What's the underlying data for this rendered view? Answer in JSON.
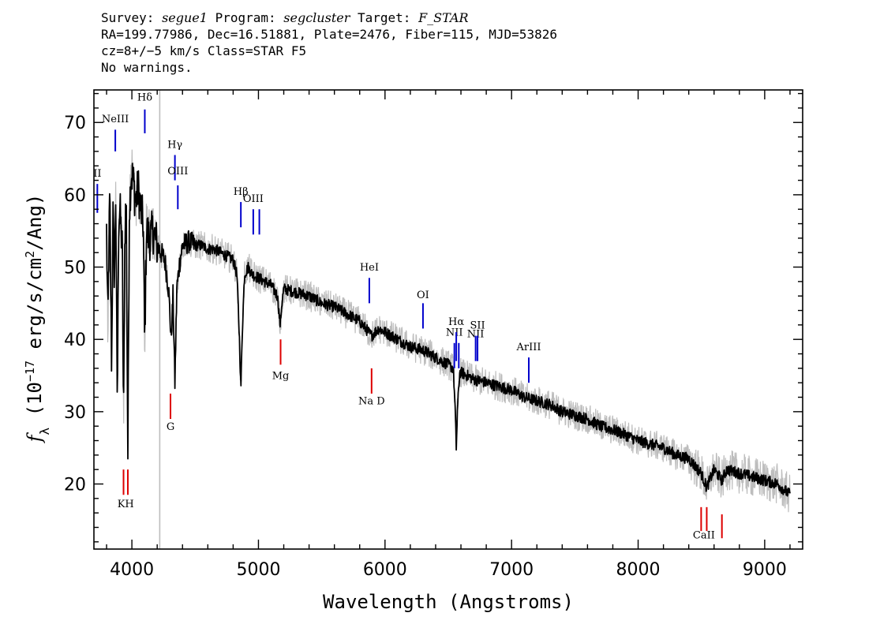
{
  "header": {
    "survey_label": "Survey:",
    "survey_value": "segue1",
    "program_label": "Program:",
    "program_value": "segcluster",
    "target_label": "Target:",
    "target_value": "F_STAR",
    "line2": "RA=199.77986, Dec=16.51881, Plate=2476, Fiber=115, MJD=53826",
    "line3": "cz=8+/−5 km/s Class=STAR F5",
    "line4": "No warnings."
  },
  "chart_data": {
    "type": "line",
    "xlabel": "Wavelength (Angstroms)",
    "ylabel": "f_λ (10^-17 erg/s/cm^2/Ang)",
    "xlim": [
      3700,
      9300
    ],
    "ylim": [
      11,
      74.5
    ],
    "x_ticks": [
      4000,
      5000,
      6000,
      7000,
      8000,
      9000
    ],
    "y_ticks": [
      20,
      30,
      40,
      50,
      60,
      70
    ],
    "grid": false,
    "legend": "none",
    "vertical_marker_x": 4220,
    "colors": {
      "spectrum": "#000000",
      "error_band": "#bdbdbd",
      "emission": "#0000cc",
      "absorption": "#dd0000",
      "marker": "#bdbdbd"
    },
    "spectrum": [
      [
        3800,
        55
      ],
      [
        3810,
        42
      ],
      [
        3825,
        60
      ],
      [
        3840,
        36
      ],
      [
        3850,
        58
      ],
      [
        3862,
        48
      ],
      [
        3872,
        60
      ],
      [
        3885,
        31
      ],
      [
        3895,
        56
      ],
      [
        3905,
        58
      ],
      [
        3925,
        52
      ],
      [
        3934,
        28
      ],
      [
        3945,
        55
      ],
      [
        3955,
        60
      ],
      [
        3968,
        24
      ],
      [
        3980,
        58
      ],
      [
        3995,
        63
      ],
      [
        4010,
        62
      ],
      [
        4030,
        59
      ],
      [
        4050,
        61
      ],
      [
        4070,
        58
      ],
      [
        4090,
        56
      ],
      [
        4101,
        39
      ],
      [
        4115,
        55
      ],
      [
        4140,
        54
      ],
      [
        4170,
        55
      ],
      [
        4200,
        53
      ],
      [
        4230,
        52
      ],
      [
        4260,
        51
      ],
      [
        4290,
        47
      ],
      [
        4310,
        40
      ],
      [
        4325,
        46
      ],
      [
        4340,
        34
      ],
      [
        4355,
        47
      ],
      [
        4380,
        51
      ],
      [
        4400,
        53
      ],
      [
        4450,
        53.5
      ],
      [
        4500,
        53
      ],
      [
        4550,
        53
      ],
      [
        4600,
        52.5
      ],
      [
        4650,
        52.5
      ],
      [
        4700,
        52
      ],
      [
        4750,
        51.5
      ],
      [
        4800,
        51
      ],
      [
        4830,
        49
      ],
      [
        4850,
        40
      ],
      [
        4861,
        33
      ],
      [
        4872,
        41
      ],
      [
        4890,
        49
      ],
      [
        4920,
        50
      ],
      [
        4950,
        49
      ],
      [
        5000,
        48.5
      ],
      [
        5050,
        48
      ],
      [
        5100,
        47.5
      ],
      [
        5150,
        46
      ],
      [
        5172,
        42
      ],
      [
        5185,
        45
      ],
      [
        5200,
        47
      ],
      [
        5300,
        46.5
      ],
      [
        5400,
        46
      ],
      [
        5500,
        45
      ],
      [
        5600,
        44.5
      ],
      [
        5700,
        43.5
      ],
      [
        5800,
        42.5
      ],
      [
        5893,
        40.5
      ],
      [
        5950,
        41.5
      ],
      [
        6000,
        41
      ],
      [
        6100,
        40
      ],
      [
        6200,
        39
      ],
      [
        6300,
        38.5
      ],
      [
        6400,
        37.5
      ],
      [
        6500,
        36.5
      ],
      [
        6540,
        36
      ],
      [
        6555,
        30
      ],
      [
        6563,
        25
      ],
      [
        6572,
        30
      ],
      [
        6590,
        35.5
      ],
      [
        6650,
        35
      ],
      [
        6700,
        34.5
      ],
      [
        6800,
        34
      ],
      [
        6900,
        33.5
      ],
      [
        7000,
        33
      ],
      [
        7100,
        32
      ],
      [
        7200,
        31.5
      ],
      [
        7300,
        31
      ],
      [
        7400,
        30
      ],
      [
        7500,
        29.5
      ],
      [
        7600,
        29
      ],
      [
        7700,
        28
      ],
      [
        7800,
        27.5
      ],
      [
        7900,
        26.8
      ],
      [
        8000,
        26
      ],
      [
        8100,
        25.5
      ],
      [
        8200,
        25
      ],
      [
        8300,
        24
      ],
      [
        8400,
        23.5
      ],
      [
        8498,
        21.5
      ],
      [
        8542,
        19.5
      ],
      [
        8600,
        22
      ],
      [
        8662,
        20.5
      ],
      [
        8700,
        22
      ],
      [
        8800,
        21.5
      ],
      [
        8900,
        21
      ],
      [
        9000,
        20.5
      ],
      [
        9100,
        20
      ],
      [
        9200,
        18.5
      ]
    ],
    "emission_lines": [
      {
        "label": "II",
        "x": 3727,
        "y_bottom": 57.5,
        "y_top": 61.5,
        "label_y": 62.5
      },
      {
        "label": "NeIII",
        "x": 3869,
        "y_bottom": 66,
        "y_top": 69,
        "label_y": 70
      },
      {
        "label": "Hδ",
        "x": 4102,
        "y_bottom": 68.5,
        "y_top": 71.8,
        "label_y": 73
      },
      {
        "label": "Hγ",
        "x": 4340,
        "y_bottom": 62,
        "y_top": 65.5,
        "label_y": 66.5
      },
      {
        "label": "OIII",
        "x": 4363,
        "y_bottom": 58,
        "y_top": 61.3,
        "label_y": 62.8
      },
      {
        "label": "Hβ",
        "x": 4861,
        "y_bottom": 55.5,
        "y_top": 59,
        "label_y": 60
      },
      {
        "label": "OIII",
        "x": 4959,
        "y_bottom": 54.5,
        "y_top": 58,
        "label_y": 59
      },
      {
        "label": "",
        "x": 5007,
        "y_bottom": 54.5,
        "y_top": 58,
        "label_y": 59
      },
      {
        "label": "HeI",
        "x": 5876,
        "y_bottom": 45,
        "y_top": 48.5,
        "label_y": 49.5
      },
      {
        "label": "OI",
        "x": 6300,
        "y_bottom": 41.5,
        "y_top": 45,
        "label_y": 45.7
      },
      {
        "label": "NII",
        "x": 6548,
        "y_bottom": 36,
        "y_top": 39.5,
        "label_y": 40.5
      },
      {
        "label": "Hα",
        "x": 6563,
        "y_bottom": 37,
        "y_top": 41,
        "label_y": 42
      },
      {
        "label": "",
        "x": 6583,
        "y_bottom": 36,
        "y_top": 39.5,
        "label_y": 40.5
      },
      {
        "label": "NII",
        "x": 6716,
        "y_bottom": 37,
        "y_top": 40.5,
        "label_y": 40.3
      },
      {
        "label": "SII",
        "x": 6731,
        "y_bottom": 37,
        "y_top": 40.5,
        "label_y": 41.5
      },
      {
        "label": "ArIII",
        "x": 7136,
        "y_bottom": 34,
        "y_top": 37.5,
        "label_y": 38.5
      }
    ],
    "absorption_lines": [
      {
        "label": "KH",
        "x": 3934,
        "x2": 3968,
        "y_bottom": 18.5,
        "y_top": 22,
        "label_y": 16.8
      },
      {
        "label": "G",
        "x": 4305,
        "y_bottom": 29,
        "y_top": 32.5,
        "label_y": 27.5
      },
      {
        "label": "Mg",
        "x": 5175,
        "y_bottom": 36.5,
        "y_top": 40,
        "label_y": 34.5
      },
      {
        "label": "Na D",
        "x": 5894,
        "y_bottom": 32.5,
        "y_top": 36,
        "label_y": 31
      },
      {
        "label": "CaII",
        "x": 8498,
        "x2": 8542,
        "y_bottom": 13.5,
        "y_top": 16.8,
        "label_y": 12.5
      },
      {
        "label": "",
        "x": 8662,
        "y_bottom": 12.5,
        "y_top": 15.8,
        "label_y": 12
      }
    ]
  }
}
